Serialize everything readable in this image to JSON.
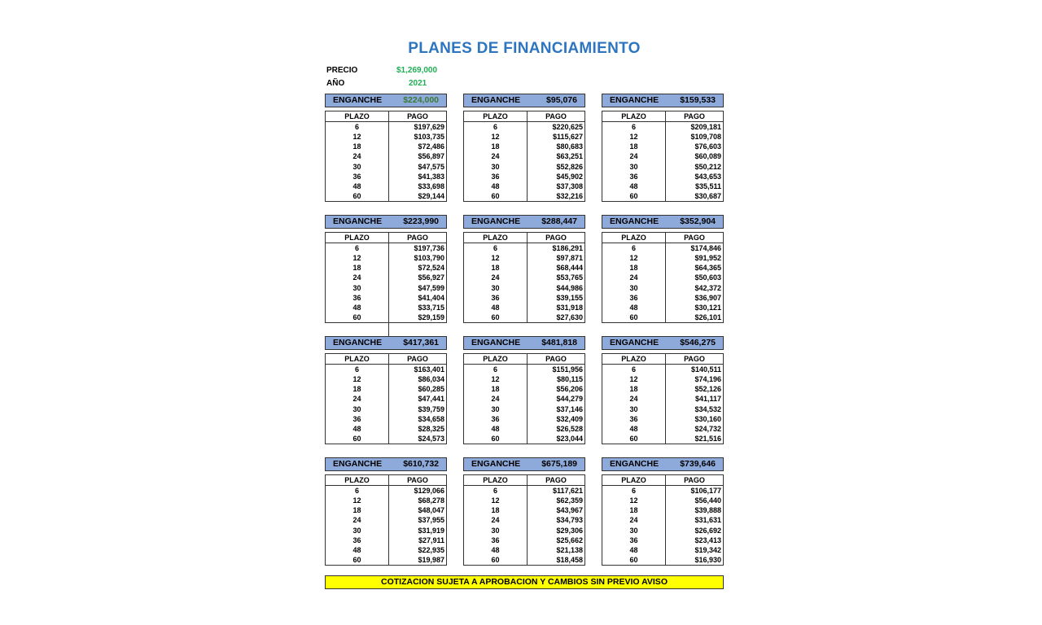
{
  "title": "PLANES DE FINANCIAMIENTO",
  "precio_label": "PRECIO",
  "precio_value": "$1,269,000",
  "anio_label": "AÑO",
  "anio_value": "2021",
  "enganche_label": "ENGANCHE",
  "plazo_header": "PLAZO",
  "pago_header": "PAGO",
  "plazos": [
    "6",
    "12",
    "18",
    "24",
    "30",
    "36",
    "48",
    "60"
  ],
  "colors": {
    "title": "#2e75c0",
    "accent_green": "#1fae55",
    "header_blue": "#8eaadb",
    "footer_yellow": "#ffff00"
  },
  "plans": [
    {
      "enganche": "$224,000",
      "pagos": [
        "$197,629",
        "$103,735",
        "$72,486",
        "$56,897",
        "$47,575",
        "$41,383",
        "$33,698",
        "$29,144"
      ]
    },
    {
      "enganche": "$95,076",
      "pagos": [
        "$220,625",
        "$115,627",
        "$80,683",
        "$63,251",
        "$52,826",
        "$45,902",
        "$37,308",
        "$32,216"
      ]
    },
    {
      "enganche": "$159,533",
      "pagos": [
        "$209,181",
        "$109,708",
        "$76,603",
        "$60,089",
        "$50,212",
        "$43,653",
        "$35,511",
        "$30,687"
      ]
    },
    {
      "enganche": "$223,990",
      "pagos": [
        "$197,736",
        "$103,790",
        "$72,524",
        "$56,927",
        "$47,599",
        "$41,404",
        "$33,715",
        "$29,159"
      ]
    },
    {
      "enganche": "$288,447",
      "pagos": [
        "$186,291",
        "$97,871",
        "$68,444",
        "$53,765",
        "$44,986",
        "$39,155",
        "$31,918",
        "$27,630"
      ]
    },
    {
      "enganche": "$352,904",
      "pagos": [
        "$174,846",
        "$91,952",
        "$64,365",
        "$50,603",
        "$42,372",
        "$36,907",
        "$30,121",
        "$26,101"
      ]
    },
    {
      "enganche": "$417,361",
      "pagos": [
        "$163,401",
        "$86,034",
        "$60,285",
        "$47,441",
        "$39,759",
        "$34,658",
        "$28,325",
        "$24,573"
      ]
    },
    {
      "enganche": "$481,818",
      "pagos": [
        "$151,956",
        "$80,115",
        "$56,206",
        "$44,279",
        "$37,146",
        "$32,409",
        "$26,528",
        "$23,044"
      ]
    },
    {
      "enganche": "$546,275",
      "pagos": [
        "$140,511",
        "$74,196",
        "$52,126",
        "$41,117",
        "$34,532",
        "$30,160",
        "$24,732",
        "$21,516"
      ]
    },
    {
      "enganche": "$610,732",
      "pagos": [
        "$129,066",
        "$68,278",
        "$48,047",
        "$37,955",
        "$31,919",
        "$27,911",
        "$22,935",
        "$19,987"
      ]
    },
    {
      "enganche": "$675,189",
      "pagos": [
        "$117,621",
        "$62,359",
        "$43,967",
        "$34,793",
        "$29,306",
        "$25,662",
        "$21,138",
        "$18,458"
      ]
    },
    {
      "enganche": "$739,646",
      "pagos": [
        "$106,177",
        "$56,440",
        "$39,888",
        "$31,631",
        "$26,692",
        "$23,413",
        "$19,342",
        "$16,930"
      ]
    }
  ],
  "footer": "COTIZACION SUJETA A APROBACION Y CAMBIOS SIN PREVIO AVISO"
}
